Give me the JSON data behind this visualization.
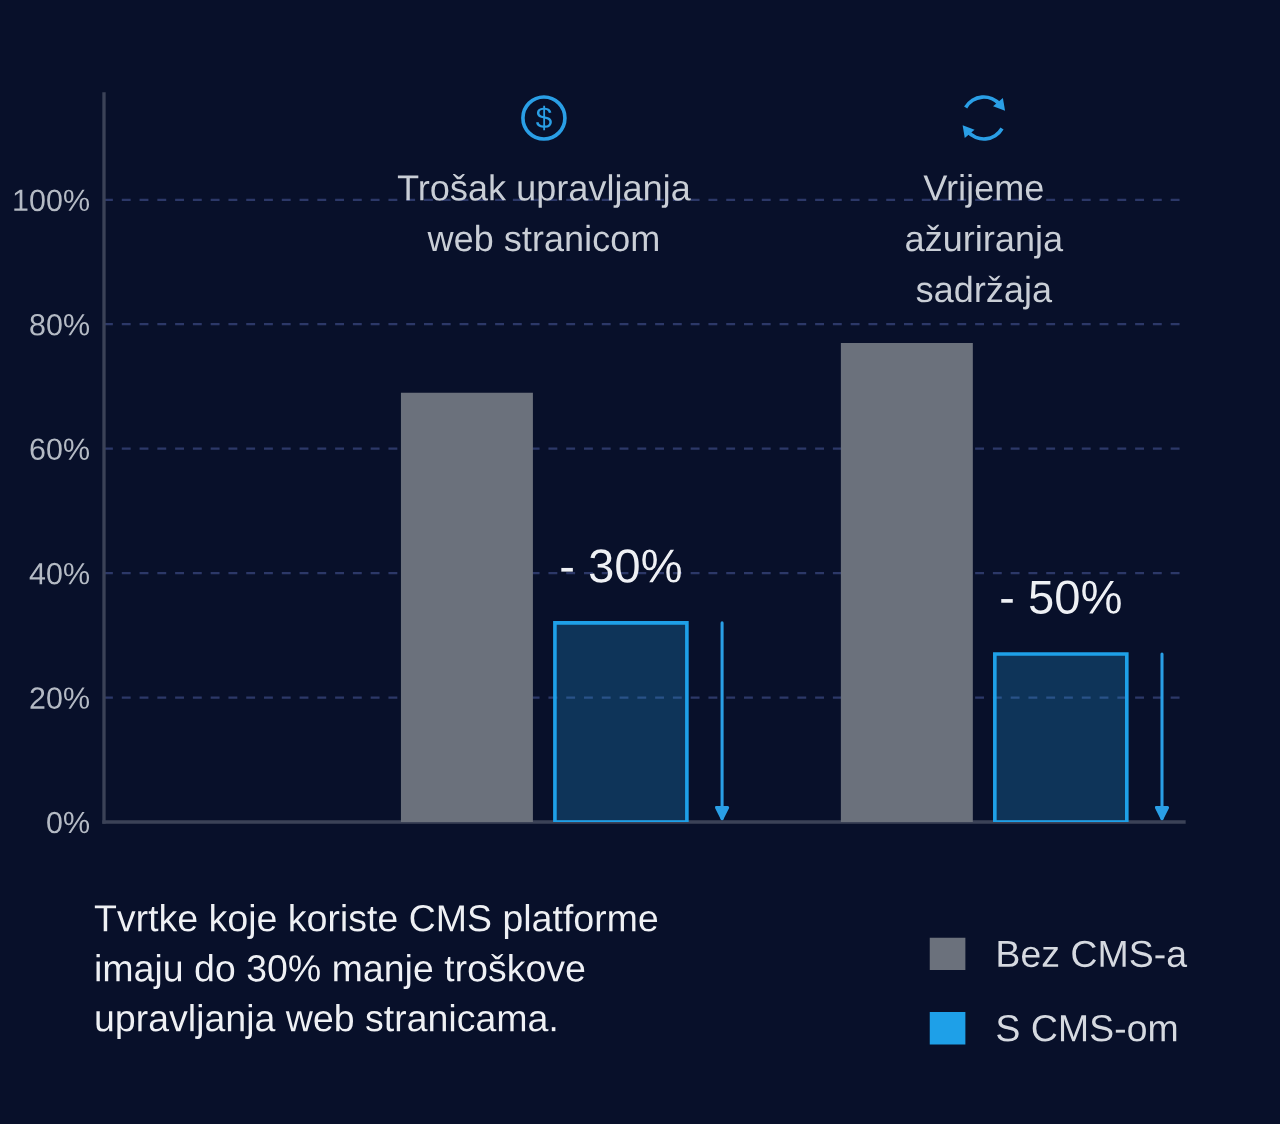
{
  "chart_data": {
    "type": "bar",
    "categories": [
      "Trošak upravljanja\nweb stranicom",
      "Vrijeme\nažuriranja\nsadržaja"
    ],
    "series": [
      {
        "name": "Bez CMS-a",
        "color": "#6b717c",
        "values": [
          69,
          77
        ]
      },
      {
        "name": "S CMS-om",
        "color": "#1ea0e8",
        "values": [
          32,
          27
        ]
      }
    ],
    "ylim": [
      0,
      117
    ],
    "yticks": [
      {
        "value": 0,
        "label": "0%"
      },
      {
        "value": 20,
        "label": "20%"
      },
      {
        "value": 40,
        "label": "40%"
      },
      {
        "value": 60,
        "label": "60%"
      },
      {
        "value": 80,
        "label": "80%"
      },
      {
        "value": 100,
        "label": "100%"
      }
    ],
    "grid": "y",
    "legend": "bottom right",
    "annotations": [
      "- 30%",
      "- 50%",
      "Tvrtke koje koriste CMS platforme\nimaju do 30% manje troškove\nupravljanja web stranicama."
    ]
  }
}
